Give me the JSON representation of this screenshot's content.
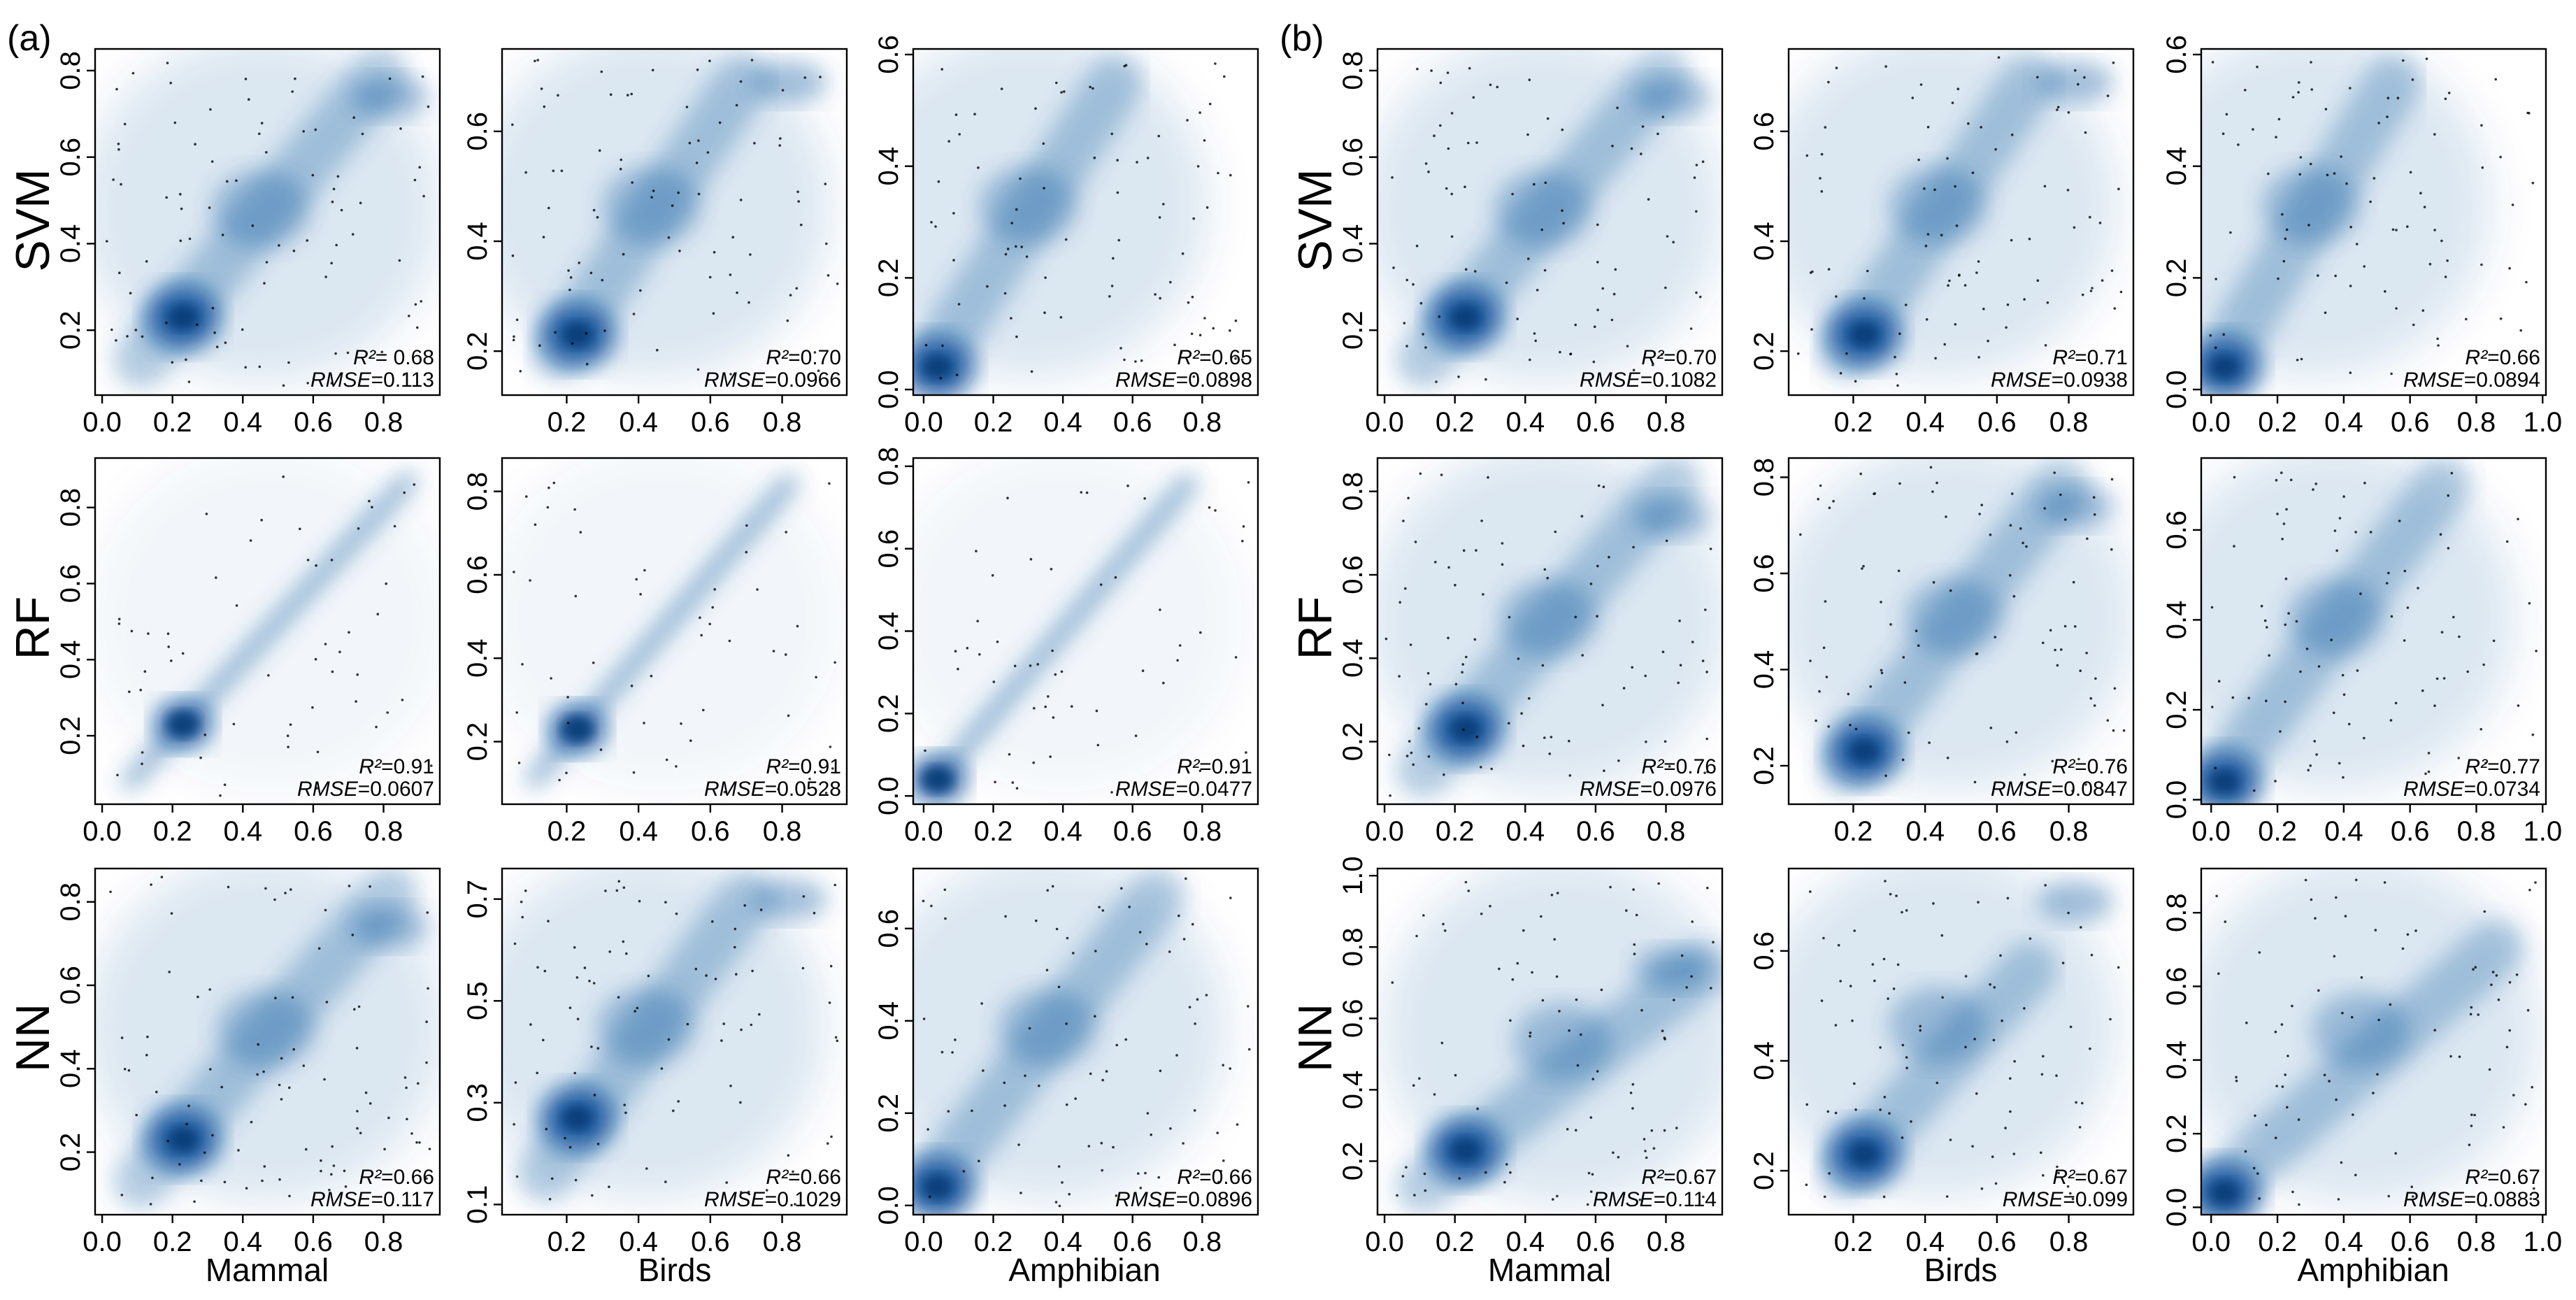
{
  "figure_labels": {
    "a": "(a)",
    "b": "(b)"
  },
  "row_labels": [
    "SVM",
    "RF",
    "NN"
  ],
  "column_labels": [
    "Mammal",
    "Birds",
    "Amphibian",
    "Mammal",
    "Birds",
    "Amphibian"
  ],
  "stat_labels": {
    "r2": "R²",
    "rmse": "RMSE"
  },
  "colors": {
    "density": "#08519c",
    "points": "#000000",
    "frame": "#000000",
    "background": "#ffffff"
  },
  "chart_data": [
    {
      "type": "scatter",
      "group": "(a)",
      "model": "SVM",
      "taxon": "Mammal",
      "xlim": [
        -0.02,
        0.96
      ],
      "ylim": [
        0.05,
        0.85
      ],
      "xticks": [
        "0.0",
        "0.2",
        "0.4",
        "0.6",
        "0.8"
      ],
      "yticks": [
        "0.2",
        "0.4",
        "0.6",
        "0.8"
      ],
      "r2": "0.68",
      "rmse": "0.113",
      "r2_text": "= 0.68",
      "rmse_text": "=0.113"
    },
    {
      "type": "scatter",
      "group": "(a)",
      "model": "SVM",
      "taxon": "Birds",
      "xlim": [
        0.02,
        0.98
      ],
      "ylim": [
        0.12,
        0.75
      ],
      "xticks": [
        "0.2",
        "0.4",
        "0.6",
        "0.8"
      ],
      "yticks": [
        "0.2",
        "0.4",
        "0.6"
      ],
      "r2": "0.70",
      "rmse": "0.0966",
      "r2_text": "=0.70",
      "rmse_text": "=0.0966"
    },
    {
      "type": "scatter",
      "group": "(a)",
      "model": "SVM",
      "taxon": "Amphibian",
      "xlim": [
        -0.03,
        0.96
      ],
      "ylim": [
        -0.01,
        0.61
      ],
      "xticks": [
        "0.0",
        "0.2",
        "0.4",
        "0.6",
        "0.8"
      ],
      "yticks": [
        "0.0",
        "0.2",
        "0.4",
        "0.6"
      ],
      "r2": "0.65",
      "rmse": "0.0898",
      "r2_text": "=0.65",
      "rmse_text": "=0.0898"
    },
    {
      "type": "scatter",
      "group": "(a)",
      "model": "RF",
      "taxon": "Mammal",
      "xlim": [
        -0.02,
        0.96
      ],
      "ylim": [
        0.02,
        0.93
      ],
      "xticks": [
        "0.0",
        "0.2",
        "0.4",
        "0.6",
        "0.8"
      ],
      "yticks": [
        "0.2",
        "0.4",
        "0.6",
        "0.8"
      ],
      "r2": "0.91",
      "rmse": "0.0607",
      "r2_text": "=0.91",
      "rmse_text": "=0.0607"
    },
    {
      "type": "scatter",
      "group": "(a)",
      "model": "RF",
      "taxon": "Birds",
      "xlim": [
        0.02,
        0.98
      ],
      "ylim": [
        0.05,
        0.88
      ],
      "xticks": [
        "0.2",
        "0.4",
        "0.6",
        "0.8"
      ],
      "yticks": [
        "0.2",
        "0.4",
        "0.6",
        "0.8"
      ],
      "r2": "0.91",
      "rmse": "0.0528",
      "r2_text": "=0.91",
      "rmse_text": "=0.0528"
    },
    {
      "type": "scatter",
      "group": "(a)",
      "model": "RF",
      "taxon": "Amphibian",
      "xlim": [
        -0.03,
        0.96
      ],
      "ylim": [
        -0.02,
        0.82
      ],
      "xticks": [
        "0.0",
        "0.2",
        "0.4",
        "0.6",
        "0.8"
      ],
      "yticks": [
        "0.0",
        "0.2",
        "0.4",
        "0.6",
        "0.8"
      ],
      "r2": "0.91",
      "rmse": "0.0477",
      "r2_text": "=0.91",
      "rmse_text": "=0.0477"
    },
    {
      "type": "scatter",
      "group": "(a)",
      "model": "NN",
      "taxon": "Mammal",
      "xlim": [
        -0.02,
        0.96
      ],
      "ylim": [
        0.05,
        0.88
      ],
      "xticks": [
        "0.0",
        "0.2",
        "0.4",
        "0.6",
        "0.8"
      ],
      "yticks": [
        "0.2",
        "0.4",
        "0.6",
        "0.8"
      ],
      "r2": "0.66",
      "rmse": "0.117",
      "r2_text": "=0.66",
      "rmse_text": "=0.117"
    },
    {
      "type": "scatter",
      "group": "(a)",
      "model": "NN",
      "taxon": "Birds",
      "xlim": [
        0.02,
        0.98
      ],
      "ylim": [
        0.08,
        0.76
      ],
      "xticks": [
        "0.2",
        "0.4",
        "0.6",
        "0.8"
      ],
      "yticks": [
        "0.1",
        "0.3",
        "0.5",
        "0.7"
      ],
      "r2": "0.66",
      "rmse": "0.1029",
      "r2_text": "=0.66",
      "rmse_text": "=0.1029"
    },
    {
      "type": "scatter",
      "group": "(a)",
      "model": "NN",
      "taxon": "Amphibian",
      "xlim": [
        -0.03,
        0.96
      ],
      "ylim": [
        -0.02,
        0.73
      ],
      "xticks": [
        "0.0",
        "0.2",
        "0.4",
        "0.6",
        "0.8"
      ],
      "yticks": [
        "0.0",
        "0.2",
        "0.4",
        "0.6"
      ],
      "r2": "0.66",
      "rmse": "0.0896",
      "r2_text": "=0.66",
      "rmse_text": "=0.0896"
    },
    {
      "type": "scatter",
      "group": "(b)",
      "model": "SVM",
      "taxon": "Mammal",
      "xlim": [
        -0.02,
        0.96
      ],
      "ylim": [
        0.05,
        0.85
      ],
      "xticks": [
        "0.0",
        "0.2",
        "0.4",
        "0.6",
        "0.8"
      ],
      "yticks": [
        "0.2",
        "0.4",
        "0.6",
        "0.8"
      ],
      "r2": "0.70",
      "rmse": "0.1082",
      "r2_text": "=0.70",
      "rmse_text": "=0.1082"
    },
    {
      "type": "scatter",
      "group": "(b)",
      "model": "SVM",
      "taxon": "Birds",
      "xlim": [
        0.02,
        0.98
      ],
      "ylim": [
        0.12,
        0.75
      ],
      "xticks": [
        "0.2",
        "0.4",
        "0.6",
        "0.8"
      ],
      "yticks": [
        "0.2",
        "0.4",
        "0.6"
      ],
      "r2": "0.71",
      "rmse": "0.0938",
      "r2_text": "=0.71",
      "rmse_text": "=0.0938"
    },
    {
      "type": "scatter",
      "group": "(b)",
      "model": "SVM",
      "taxon": "Amphibian",
      "xlim": [
        -0.03,
        1.01
      ],
      "ylim": [
        -0.01,
        0.61
      ],
      "xticks": [
        "0.0",
        "0.2",
        "0.4",
        "0.6",
        "0.8",
        "1.0"
      ],
      "yticks": [
        "0.0",
        "0.2",
        "0.4",
        "0.6"
      ],
      "r2": "0.66",
      "rmse": "0.0894",
      "r2_text": "=0.66",
      "rmse_text": "=0.0894"
    },
    {
      "type": "scatter",
      "group": "(b)",
      "model": "RF",
      "taxon": "Mammal",
      "xlim": [
        -0.02,
        0.96
      ],
      "ylim": [
        0.05,
        0.88
      ],
      "xticks": [
        "0.0",
        "0.2",
        "0.4",
        "0.6",
        "0.8"
      ],
      "yticks": [
        "0.2",
        "0.4",
        "0.6",
        "0.8"
      ],
      "r2": "0.76",
      "rmse": "0.0976",
      "r2_text": "=0.76",
      "rmse_text": "=0.0976"
    },
    {
      "type": "scatter",
      "group": "(b)",
      "model": "RF",
      "taxon": "Birds",
      "xlim": [
        0.02,
        0.98
      ],
      "ylim": [
        0.12,
        0.84
      ],
      "xticks": [
        "0.2",
        "0.4",
        "0.6",
        "0.8"
      ],
      "yticks": [
        "0.2",
        "0.4",
        "0.6",
        "0.8"
      ],
      "r2": "0.76",
      "rmse": "0.0847",
      "r2_text": "=0.76",
      "rmse_text": "=0.0847"
    },
    {
      "type": "scatter",
      "group": "(b)",
      "model": "RF",
      "taxon": "Amphibian",
      "xlim": [
        -0.03,
        1.01
      ],
      "ylim": [
        -0.01,
        0.76
      ],
      "xticks": [
        "0.0",
        "0.2",
        "0.4",
        "0.6",
        "0.8",
        "1.0"
      ],
      "yticks": [
        "0.0",
        "0.2",
        "0.4",
        "0.6"
      ],
      "r2": "0.77",
      "rmse": "0.0734",
      "r2_text": "=0.77",
      "rmse_text": "=0.0734"
    },
    {
      "type": "scatter",
      "group": "(b)",
      "model": "NN",
      "taxon": "Mammal",
      "xlim": [
        -0.02,
        0.96
      ],
      "ylim": [
        0.05,
        1.02
      ],
      "xticks": [
        "0.0",
        "0.2",
        "0.4",
        "0.6",
        "0.8"
      ],
      "yticks": [
        "0.2",
        "0.4",
        "0.6",
        "0.8",
        "1.0"
      ],
      "r2": "0.67",
      "rmse": "0.114",
      "r2_text": "=0.67",
      "rmse_text": "=0.114"
    },
    {
      "type": "scatter",
      "group": "(b)",
      "model": "NN",
      "taxon": "Birds",
      "xlim": [
        0.02,
        0.98
      ],
      "ylim": [
        0.12,
        0.75
      ],
      "xticks": [
        "0.2",
        "0.4",
        "0.6",
        "0.8"
      ],
      "yticks": [
        "0.2",
        "0.4",
        "0.6"
      ],
      "r2": "0.67",
      "rmse": "0.099",
      "r2_text": "=0.67",
      "rmse_text": "=0.099"
    },
    {
      "type": "scatter",
      "group": "(b)",
      "model": "NN",
      "taxon": "Amphibian",
      "xlim": [
        -0.03,
        1.01
      ],
      "ylim": [
        -0.02,
        0.92
      ],
      "xticks": [
        "0.0",
        "0.2",
        "0.4",
        "0.6",
        "0.8",
        "1.0"
      ],
      "yticks": [
        "0.0",
        "0.2",
        "0.4",
        "0.6",
        "0.8"
      ],
      "r2": "0.67",
      "rmse": "0.0883",
      "r2_text": "=0.67",
      "rmse_text": "=0.0883"
    }
  ]
}
